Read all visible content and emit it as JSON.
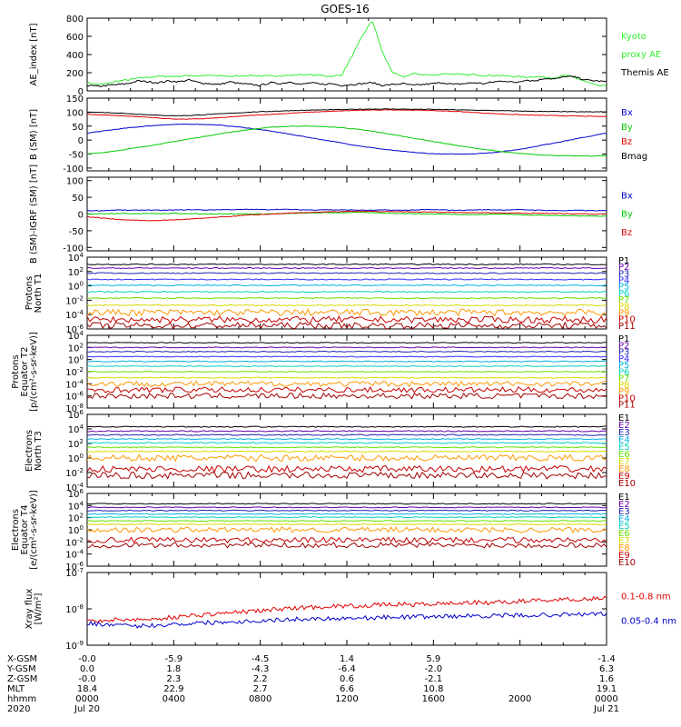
{
  "title": "GOES-16",
  "colors": {
    "black": "#000000",
    "red": "#e00000",
    "blue": "#0000cc",
    "green": "#00cc00",
    "green_bright": "#33ee33",
    "navy": "#2020b0",
    "purple": "#6600aa",
    "dblue": "#3030ff",
    "cyan": "#00b0e0",
    "teal": "#00d0c0",
    "lime": "#66e000",
    "yellow": "#d8d800",
    "orange": "#ff9900",
    "crimson": "#c80000",
    "maroon": "#a00000"
  },
  "chart_data": [
    {
      "type": "line",
      "name": "ae-index",
      "ylabel": "AE_index [nT]",
      "ylim": [
        0,
        800
      ],
      "yticks": [
        "800",
        "600",
        "400",
        "200",
        "0"
      ],
      "series": [
        {
          "name": "Kyoto proxy AE",
          "color": "#33ee33",
          "values": [
            90,
            70,
            80,
            110,
            120,
            140,
            150,
            160,
            160,
            160,
            170,
            165,
            170,
            165,
            160,
            165,
            170,
            165,
            160,
            170,
            170,
            180,
            175,
            170,
            160,
            175,
            380,
            600,
            780,
            420,
            200,
            150,
            190,
            180,
            170,
            190,
            185,
            175,
            180,
            170,
            170,
            165,
            160,
            150,
            160,
            150,
            145,
            170,
            140,
            100,
            60,
            50
          ]
        },
        {
          "name": "Themis AE",
          "color": "#000000",
          "values": [
            60,
            50,
            60,
            70,
            80,
            110,
            100,
            90,
            110,
            100,
            120,
            90,
            80,
            70,
            100,
            80,
            70,
            60,
            90,
            80,
            100,
            70,
            90,
            70,
            80,
            60,
            70,
            80,
            90,
            60,
            70,
            80,
            60,
            70,
            80,
            90,
            70,
            80,
            90,
            80,
            100,
            110,
            90,
            120,
            110,
            140,
            130,
            160,
            150,
            120,
            110,
            100
          ]
        }
      ],
      "legend": [
        {
          "label": "Kyoto",
          "color": "#33ee33"
        },
        {
          "label": "proxy AE",
          "color": "#33ee33"
        },
        {
          "label": "Themis AE",
          "color": "#000000"
        }
      ]
    },
    {
      "type": "line",
      "name": "b-sm",
      "ylabel": "B (SM) [nT]",
      "ylim": [
        -110,
        150
      ],
      "yticks": [
        "150",
        "100",
        "50",
        "0",
        "-50",
        "-100"
      ],
      "series": [
        {
          "name": "Bx",
          "color": "#0000cc",
          "values": [
            25,
            32,
            39,
            45,
            50,
            54,
            56,
            57,
            56,
            53,
            48,
            42,
            35,
            27,
            18,
            9,
            0,
            -9,
            -18,
            -26,
            -33,
            -39,
            -44,
            -48,
            -50,
            -50,
            -49,
            -46,
            -41,
            -34,
            -25,
            -15,
            -5,
            5,
            15,
            25
          ]
        },
        {
          "name": "By",
          "color": "#00cc00",
          "values": [
            -50,
            -45,
            -38,
            -30,
            -22,
            -13,
            -4,
            5,
            14,
            23,
            31,
            38,
            44,
            48,
            50,
            50,
            48,
            45,
            40,
            33,
            25,
            16,
            7,
            -2,
            -11,
            -20,
            -28,
            -35,
            -42,
            -47,
            -51,
            -54,
            -56,
            -57,
            -57,
            -56
          ]
        },
        {
          "name": "Bz",
          "color": "#e00000",
          "values": [
            92,
            90,
            88,
            85,
            82,
            78,
            75,
            75,
            77,
            80,
            84,
            88,
            91,
            94,
            97,
            100,
            102,
            104,
            106,
            107,
            108,
            108,
            107,
            106,
            104,
            102,
            99,
            96,
            93,
            91,
            89,
            88,
            87,
            86,
            85,
            84
          ]
        },
        {
          "name": "Bmag",
          "color": "#000000",
          "values": [
            100,
            99,
            97,
            94,
            91,
            88,
            87,
            88,
            91,
            94,
            97,
            100,
            102,
            104,
            106,
            107,
            108,
            109,
            110,
            111,
            111,
            111,
            110,
            110,
            109,
            108,
            107,
            106,
            105,
            104,
            103,
            102,
            102,
            101,
            101,
            101
          ]
        }
      ],
      "legend": [
        {
          "label": "Bx",
          "color": "#0000cc"
        },
        {
          "label": "By",
          "color": "#00cc00"
        },
        {
          "label": "Bz",
          "color": "#e00000"
        },
        {
          "label": "Bmag",
          "color": "#000000"
        }
      ]
    },
    {
      "type": "line",
      "name": "b-minus-igrf",
      "ylabel": "B (SM)-IGRF (SM) [nT]",
      "ylim": [
        -110,
        110
      ],
      "yticks": [
        "100",
        "50",
        "0",
        "-50",
        "-100"
      ],
      "series": [
        {
          "name": "Bx",
          "color": "#0000cc",
          "values": [
            10,
            10,
            12,
            11,
            12,
            11,
            12,
            13,
            12,
            13,
            13,
            14,
            13,
            14,
            13,
            12,
            13,
            12,
            12,
            11,
            12,
            11,
            12,
            13,
            12,
            11,
            12,
            13,
            12,
            13,
            12,
            11,
            10,
            11,
            10,
            10
          ]
        },
        {
          "name": "By",
          "color": "#00cc00",
          "values": [
            0,
            1,
            2,
            1,
            2,
            1,
            2,
            1,
            0,
            1,
            0,
            0,
            0,
            1,
            2,
            3,
            4,
            4,
            5,
            4,
            3,
            2,
            1,
            0,
            0,
            -1,
            -2,
            -1,
            0,
            -2,
            -3,
            -4,
            -5,
            -5,
            -6,
            -6
          ]
        },
        {
          "name": "Bz",
          "color": "#e00000",
          "values": [
            -8,
            -12,
            -16,
            -18,
            -20,
            -19,
            -17,
            -15,
            -12,
            -9,
            -6,
            -3,
            -1,
            1,
            3,
            5,
            6,
            7,
            8,
            8,
            7,
            7,
            6,
            6,
            5,
            5,
            4,
            4,
            3,
            3,
            2,
            2,
            1,
            1,
            0,
            0
          ]
        }
      ],
      "legend": [
        {
          "label": "Bx",
          "color": "#0000cc"
        },
        {
          "label": "By",
          "color": "#00cc00"
        },
        {
          "label": "Bz",
          "color": "#e00000"
        }
      ]
    },
    {
      "type": "line",
      "name": "protons-north-t1",
      "ylabel": [
        "Protons",
        "North T1"
      ],
      "yscale": "log",
      "ylim": [
        1e-06,
        10000.0
      ],
      "yticks": [
        "10^4",
        "10^2",
        "10^0",
        "10^-2",
        "10^-4",
        "10^-6"
      ],
      "series": [
        {
          "name": "P1",
          "color": "#000000",
          "level": 1000
        },
        {
          "name": "P2",
          "color": "#6600aa",
          "level": 300
        },
        {
          "name": "P3",
          "color": "#2020b0",
          "level": 60
        },
        {
          "name": "P4",
          "color": "#3030ff",
          "level": 8
        },
        {
          "name": "P5",
          "color": "#00b0e0",
          "level": 1.2
        },
        {
          "name": "P6",
          "color": "#00d0c0",
          "level": 0.15
        },
        {
          "name": "P7",
          "color": "#66e000",
          "level": 0.02
        },
        {
          "name": "P8",
          "color": "#d8d800",
          "level": 0.002
        },
        {
          "name": "P9",
          "color": "#ff9900",
          "level": 0.0002
        },
        {
          "name": "P10",
          "color": "#c80000",
          "level": 2e-05
        },
        {
          "name": "P11",
          "color": "#a00000",
          "level": 3e-06
        }
      ]
    },
    {
      "type": "line",
      "name": "protons-equator-t2",
      "ylabel": [
        "Protons",
        "Equator T2",
        "[p/(cm²-s-sr-keV)]"
      ],
      "yscale": "log",
      "ylim": [
        1e-08,
        10000.0
      ],
      "yticks": [
        "10^4",
        "10^2",
        "10^0",
        "10^-2",
        "10^-4",
        "10^-6",
        "10^-8"
      ],
      "series": [
        {
          "name": "P1",
          "color": "#000000",
          "level": 600
        },
        {
          "name": "P2",
          "color": "#6600aa",
          "level": 100
        },
        {
          "name": "P3",
          "color": "#2020b0",
          "level": 20
        },
        {
          "name": "P4",
          "color": "#3030ff",
          "level": 3
        },
        {
          "name": "P5",
          "color": "#00b0e0",
          "level": 0.5
        },
        {
          "name": "P6",
          "color": "#00d0c0",
          "level": 0.08
        },
        {
          "name": "P7",
          "color": "#66e000",
          "level": 0.01
        },
        {
          "name": "P8",
          "color": "#d8d800",
          "level": 0.001
        },
        {
          "name": "P9",
          "color": "#ff9900",
          "level": 0.0001
        },
        {
          "name": "P10",
          "color": "#c80000",
          "level": 1e-05
        },
        {
          "name": "P11",
          "color": "#a00000",
          "level": 1e-06
        }
      ]
    },
    {
      "type": "line",
      "name": "electrons-north-t3",
      "ylabel": [
        "Electrons",
        "North T3"
      ],
      "yscale": "log",
      "ylim": [
        0.0001,
        1000000.0
      ],
      "yticks": [
        "10^6",
        "10^4",
        "10^2",
        "10^0",
        "10^-2",
        "10^-4"
      ],
      "series": [
        {
          "name": "E1",
          "color": "#000000",
          "level": 20000
        },
        {
          "name": "E2",
          "color": "#6600aa",
          "level": 5000
        },
        {
          "name": "E3",
          "color": "#2020b0",
          "level": 1500
        },
        {
          "name": "E4",
          "color": "#00b0e0",
          "level": 400
        },
        {
          "name": "E5",
          "color": "#00d0c0",
          "level": 120
        },
        {
          "name": "E6",
          "color": "#66e000",
          "level": 30
        },
        {
          "name": "E7",
          "color": "#d8d800",
          "level": 8
        },
        {
          "name": "E8",
          "color": "#ff9900",
          "level": 1
        },
        {
          "name": "E9",
          "color": "#c80000",
          "level": 0.03
        },
        {
          "name": "E10",
          "color": "#a00000",
          "level": 0.004
        }
      ]
    },
    {
      "type": "line",
      "name": "electrons-equator-t4",
      "ylabel": [
        "Electrons",
        "Equator T4",
        "[e/(cm²-s-sr-keV)]"
      ],
      "yscale": "log",
      "ylim": [
        1e-06,
        1000000.0
      ],
      "yticks": [
        "10^6",
        "10^4",
        "10^2",
        "10^0",
        "10^-2",
        "10^-4",
        "10^-6"
      ],
      "series": [
        {
          "name": "E1",
          "color": "#000000",
          "level": 20000
        },
        {
          "name": "E2",
          "color": "#6600aa",
          "level": 5000
        },
        {
          "name": "E3",
          "color": "#2020b0",
          "level": 1500
        },
        {
          "name": "E4",
          "color": "#00b0e0",
          "level": 400
        },
        {
          "name": "E5",
          "color": "#00d0c0",
          "level": 120
        },
        {
          "name": "E6",
          "color": "#66e000",
          "level": 30
        },
        {
          "name": "E7",
          "color": "#d8d800",
          "level": 8
        },
        {
          "name": "E8",
          "color": "#ff9900",
          "level": 1
        },
        {
          "name": "E9",
          "color": "#c80000",
          "level": 0.02
        },
        {
          "name": "E10",
          "color": "#a00000",
          "level": 0.003
        }
      ]
    },
    {
      "type": "line",
      "name": "xray-flux",
      "ylabel": [
        "Xray flux",
        "[W/m²]"
      ],
      "yscale": "log",
      "ylim": [
        1e-09,
        1e-07
      ],
      "yticks": [
        "10^-7",
        "10^-8",
        "10^-9"
      ],
      "series": [
        {
          "name": "0.1-0.8 nm",
          "color": "#e00000",
          "values": [
            4.5e-09,
            4.8e-09,
            5e-09,
            5.2e-09,
            5e-09,
            5.5e-09,
            6e-09,
            6.5e-09,
            7e-09,
            7.5e-09,
            8e-09,
            8.5e-09,
            9e-09,
            1e-08,
            1.05e-08,
            1.1e-08,
            1.15e-08,
            1.2e-08,
            1.2e-08,
            1.25e-08,
            1.3e-08,
            1.35e-08,
            1.3e-08,
            1.35e-08,
            1.4e-08,
            1.45e-08,
            1.5e-08,
            1.45e-08,
            1.55e-08,
            1.6e-08,
            1.7e-08,
            1.75e-08,
            1.8e-08,
            1.85e-08,
            1.9e-08,
            2e-08
          ]
        },
        {
          "name": "0.05-0.4 nm",
          "color": "#0000cc",
          "values": [
            4e-09,
            3.8e-09,
            3.5e-09,
            3.3e-09,
            3.5e-09,
            3.6e-09,
            3.8e-09,
            4e-09,
            4.2e-09,
            4.3e-09,
            4.5e-09,
            4.6e-09,
            4.8e-09,
            5e-09,
            5.2e-09,
            5.3e-09,
            5.4e-09,
            5.5e-09,
            5.6e-09,
            5.7e-09,
            5.8e-09,
            6e-09,
            6e-09,
            6.1e-09,
            6.2e-09,
            6.3e-09,
            6.4e-09,
            6.4e-09,
            6.5e-09,
            6.6e-09,
            6.7e-09,
            6.8e-09,
            6.9e-09,
            7e-09,
            7.2e-09,
            7.3e-09
          ]
        }
      ],
      "legend": [
        {
          "label": "0.1-0.8 nm",
          "color": "#e00000"
        },
        {
          "label": "0.05-0.4 nm",
          "color": "#0000cc"
        }
      ]
    }
  ],
  "footer": {
    "rows": [
      {
        "label": "X-GSM",
        "values": [
          "-0.0",
          "-5.9",
          "-4.5",
          "1.4",
          "5.9",
          "",
          "-1.4"
        ]
      },
      {
        "label": "Y-GSM",
        "values": [
          "0.0",
          "1.8",
          "-4.3",
          "-6.4",
          "-2.0",
          "",
          "6.3"
        ]
      },
      {
        "label": "Z-GSM",
        "values": [
          "-0.0",
          "2.3",
          "2.2",
          "0.6",
          "-2.1",
          "",
          "1.6"
        ]
      },
      {
        "label": "MLT",
        "values": [
          "18.4",
          "22.9",
          "2.7",
          "6.6",
          "10.8",
          "",
          "19.1"
        ]
      },
      {
        "label": "hhmm",
        "values": [
          "0000",
          "0400",
          "0800",
          "1200",
          "1600",
          "2000",
          "0000"
        ]
      },
      {
        "label": "2020",
        "values": [
          "Jul 20",
          "",
          "",
          "",
          "",
          "",
          "Jul 21"
        ]
      }
    ]
  }
}
